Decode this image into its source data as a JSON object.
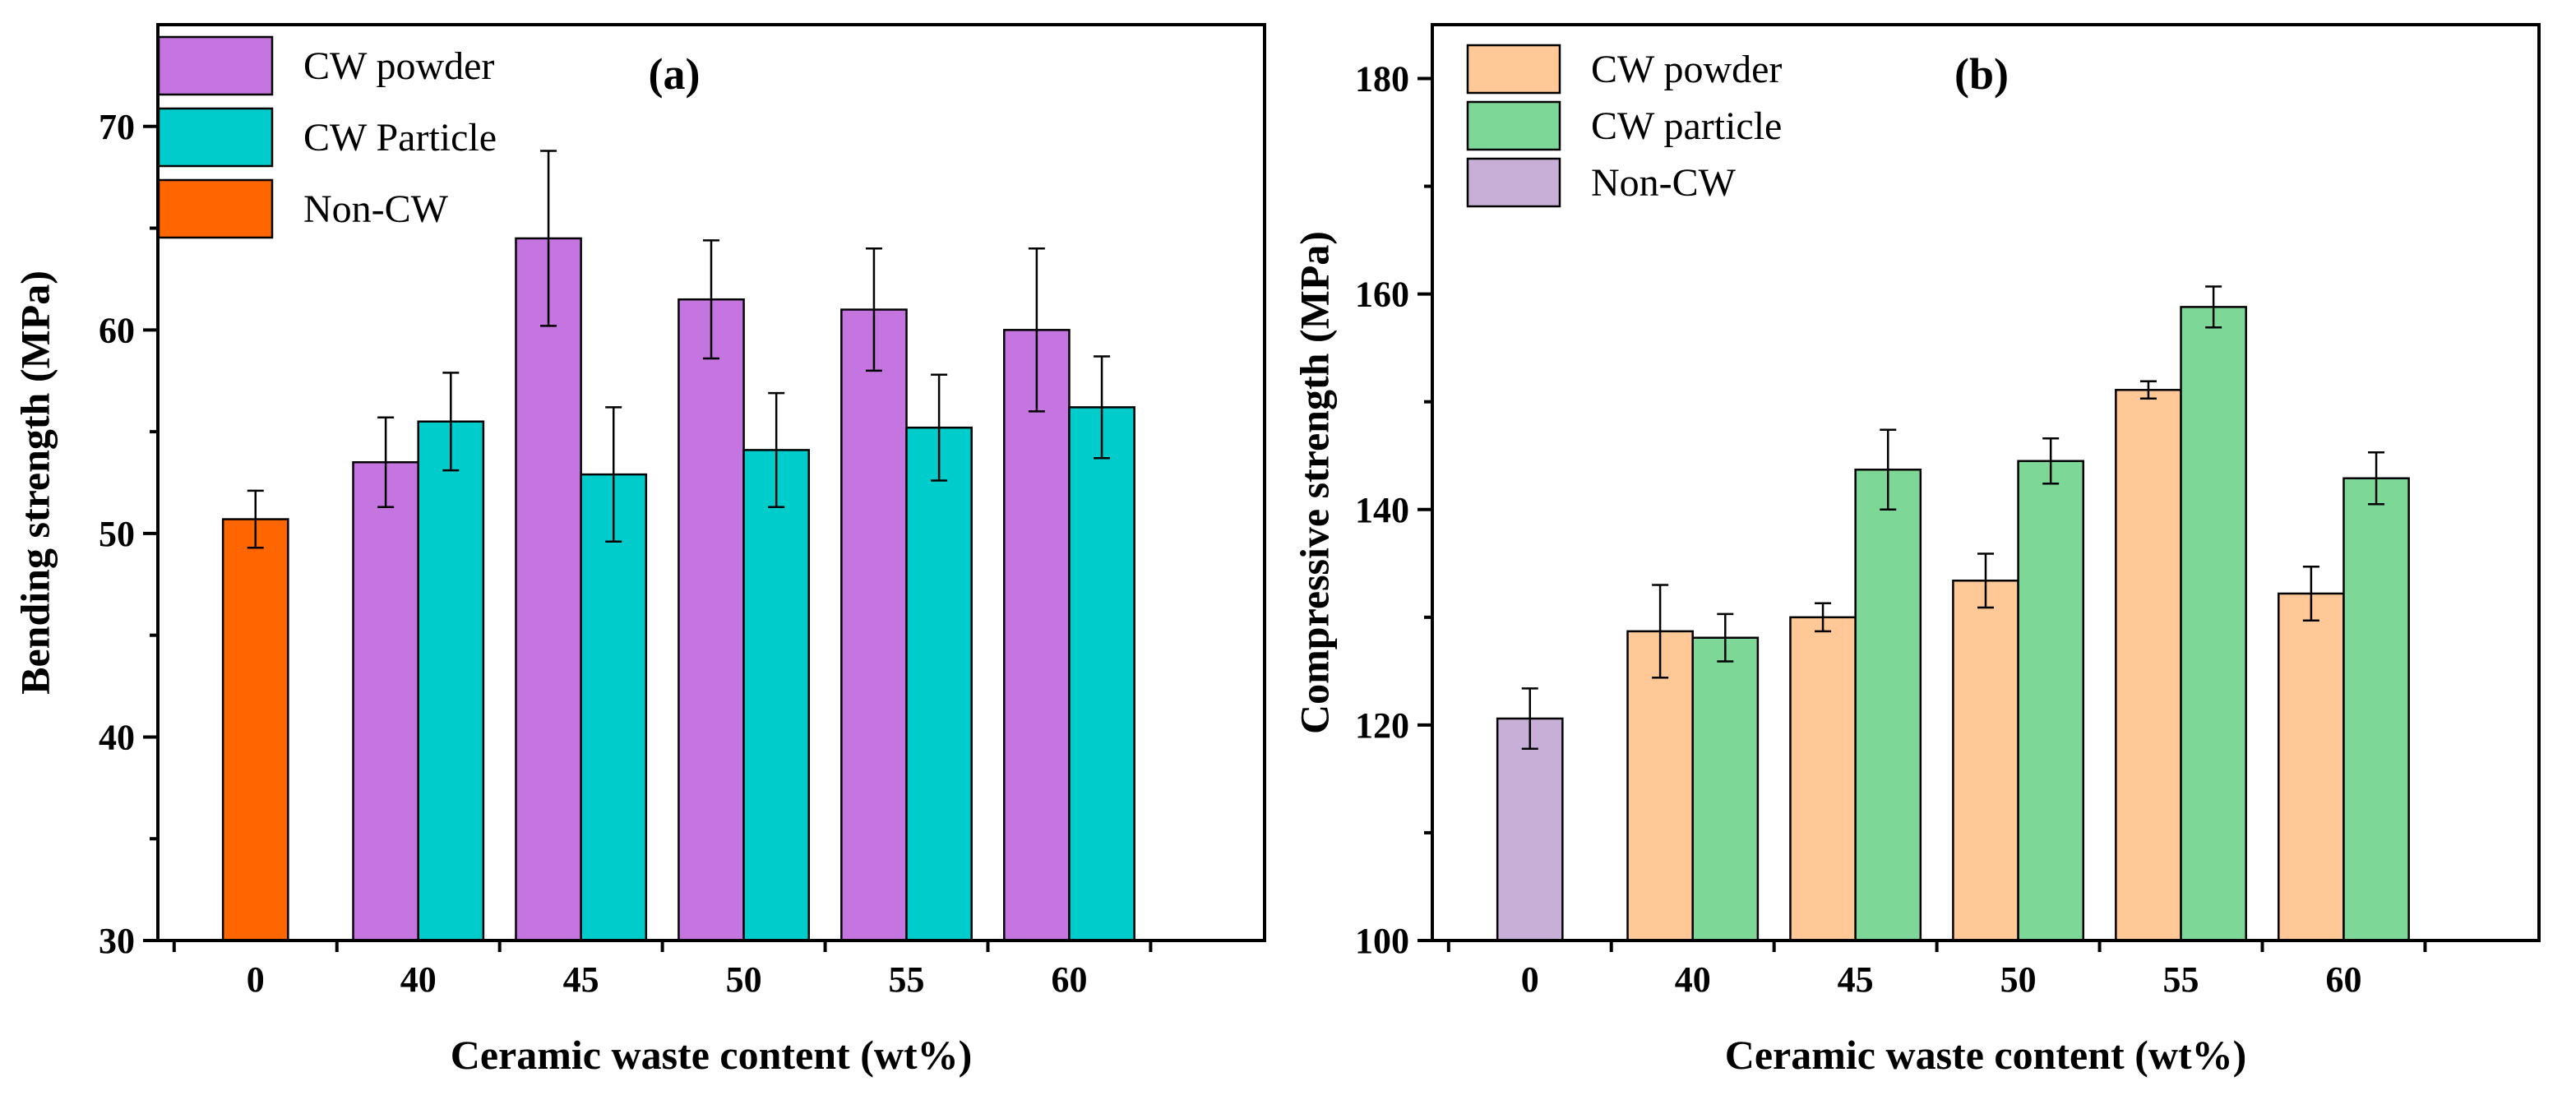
{
  "chart_data": [
    {
      "type": "bar",
      "panel_label": "(a)",
      "xlabel": "Ceramic waste content (wt%)",
      "ylabel": "Bending strength (MPa)",
      "ylim": [
        30,
        75
      ],
      "yticks": [
        30,
        40,
        50,
        60,
        70
      ],
      "categories": [
        "0",
        "40",
        "45",
        "50",
        "55",
        "60"
      ],
      "legend_position": "top-left",
      "series": [
        {
          "name": "CW powder",
          "color": "#c475e0",
          "values": [
            null,
            53.5,
            64.5,
            61.5,
            61.0,
            60.0
          ],
          "errors": [
            null,
            2.2,
            4.3,
            2.9,
            3.0,
            4.0
          ]
        },
        {
          "name": "CW Particle",
          "color": "#00cccc",
          "values": [
            null,
            55.5,
            52.9,
            54.1,
            55.2,
            56.2
          ],
          "errors": [
            null,
            2.4,
            3.3,
            2.8,
            2.6,
            2.5
          ]
        },
        {
          "name": "Non-CW",
          "color": "#ff6600",
          "values": [
            50.7,
            null,
            null,
            null,
            null,
            null
          ],
          "errors": [
            1.4,
            null,
            null,
            null,
            null,
            null
          ]
        }
      ]
    },
    {
      "type": "bar",
      "panel_label": "(b)",
      "xlabel": "Ceramic waste content (wt%)",
      "ylabel": "Compressive strength (MPa)",
      "ylim": [
        100,
        185
      ],
      "yticks": [
        100,
        120,
        140,
        160,
        180
      ],
      "categories": [
        "0",
        "40",
        "45",
        "50",
        "55",
        "60"
      ],
      "legend_position": "top-left",
      "series": [
        {
          "name": "CW powder",
          "color": "#ffc896",
          "values": [
            null,
            128.7,
            130.0,
            133.4,
            151.1,
            132.2
          ],
          "errors": [
            null,
            4.3,
            1.3,
            2.5,
            0.8,
            2.5
          ]
        },
        {
          "name": "CW particle",
          "color": "#7dd898",
          "values": [
            null,
            128.1,
            143.7,
            144.5,
            158.8,
            142.9
          ],
          "errors": [
            null,
            2.2,
            3.7,
            2.1,
            1.9,
            2.4
          ]
        },
        {
          "name": "Non-CW",
          "color": "#c8afd7",
          "values": [
            120.6,
            null,
            null,
            null,
            null,
            null
          ],
          "errors": [
            2.8,
            null,
            null,
            null,
            null,
            null
          ]
        }
      ]
    }
  ]
}
